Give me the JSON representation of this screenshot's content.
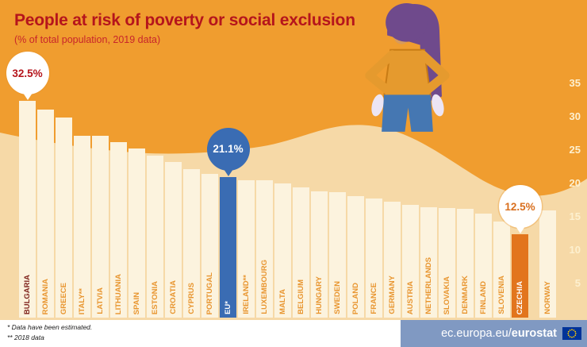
{
  "title": "People at risk of poverty or social exclusion",
  "subtitle": "(% of total population, 2019 data)",
  "chart_data": {
    "type": "bar",
    "title": "People at risk of poverty or social exclusion",
    "unit": "% of total population, 2019 data",
    "ylim": [
      0,
      35
    ],
    "yticks": [
      35,
      30,
      25,
      20,
      15,
      10,
      5
    ],
    "legend": null,
    "grid": false,
    "bars": [
      {
        "name": "BULGARIA",
        "value": 32.5,
        "style": "dark"
      },
      {
        "name": "ROMANIA",
        "value": 31.2
      },
      {
        "name": "GREECE",
        "value": 30.0
      },
      {
        "name": "ITALY**",
        "value": 27.3
      },
      {
        "name": "LATVIA",
        "value": 27.3
      },
      {
        "name": "LITHUANIA",
        "value": 26.3
      },
      {
        "name": "SPAIN",
        "value": 25.3
      },
      {
        "name": "ESTONIA",
        "value": 24.3
      },
      {
        "name": "CROATIA",
        "value": 23.3
      },
      {
        "name": "CYPRUS",
        "value": 22.3
      },
      {
        "name": "PORTUGAL",
        "value": 21.6
      },
      {
        "name": "EU*",
        "value": 21.1,
        "style": "eu"
      },
      {
        "name": "IRELAND**",
        "value": 20.6
      },
      {
        "name": "LUXEMBOURG",
        "value": 20.6
      },
      {
        "name": "MALTA",
        "value": 20.1
      },
      {
        "name": "BELGIUM",
        "value": 19.5
      },
      {
        "name": "HUNGARY",
        "value": 18.9
      },
      {
        "name": "SWEDEN",
        "value": 18.8
      },
      {
        "name": "POLAND",
        "value": 18.2
      },
      {
        "name": "FRANCE",
        "value": 17.9
      },
      {
        "name": "GERMANY",
        "value": 17.4
      },
      {
        "name": "AUSTRIA",
        "value": 16.9
      },
      {
        "name": "NETHERLANDS",
        "value": 16.5
      },
      {
        "name": "SLOVAKIA",
        "value": 16.4
      },
      {
        "name": "DENMARK",
        "value": 16.3
      },
      {
        "name": "FINLAND",
        "value": 15.6
      },
      {
        "name": "SLOVENIA",
        "value": 14.4
      },
      {
        "name": "CZECHIA",
        "value": 12.5,
        "style": "highlight"
      },
      {
        "name": "NORWAY",
        "value": 16.1,
        "gap_before": true
      }
    ],
    "callouts": [
      {
        "country": "BULGARIA",
        "label": "32.5%",
        "style": "light",
        "text_color": "#b5151c"
      },
      {
        "country": "EU*",
        "label": "21.1%",
        "style": "blue",
        "text_color": "#ffffff"
      },
      {
        "country": "CZECHIA",
        "label": "12.5%",
        "style": "light",
        "text_color": "#d96f1e"
      }
    ]
  },
  "footnotes": [
    "* Data have been estimated.",
    "** 2018 data"
  ],
  "footer": {
    "url_prefix": "ec.europa.eu/",
    "url_bold": "eurostat"
  },
  "colors": {
    "background_orange": "#f09d2f",
    "background_sand": "#f6d9a7",
    "bar_cream": "#fcf3de",
    "bar_label_orange": "#e8952f",
    "eu_blue": "#3a6cb3",
    "highlight_orange": "#e2751d",
    "title_red": "#b5151c",
    "footer_blue": "#8099c2"
  }
}
